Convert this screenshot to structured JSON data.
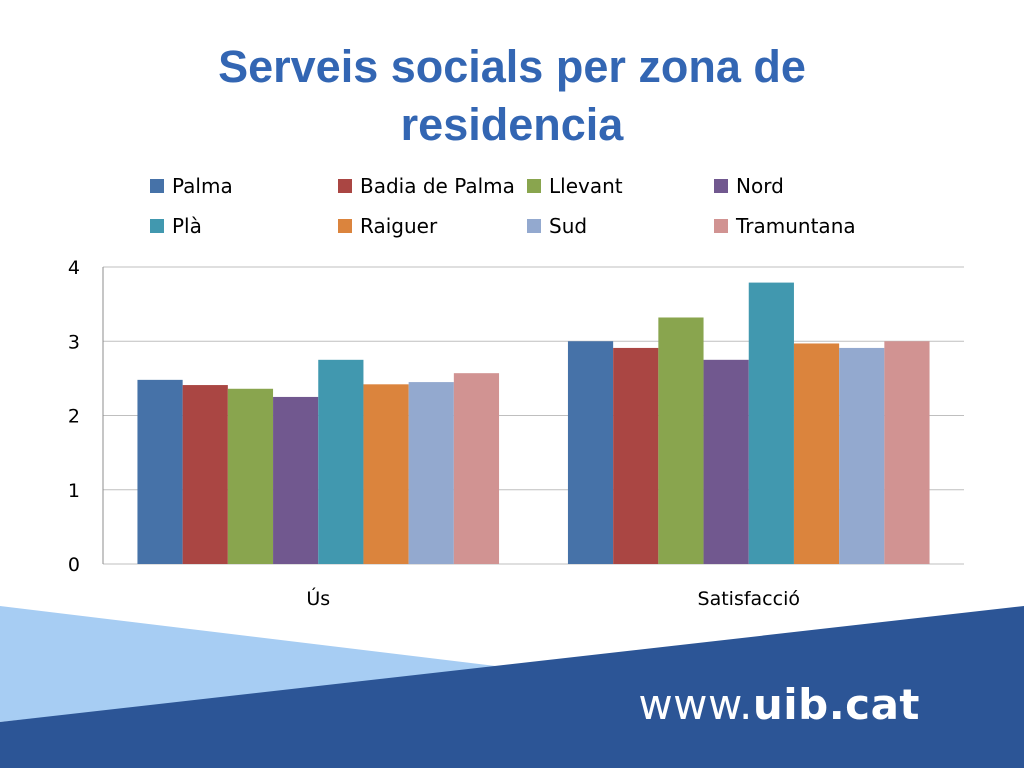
{
  "slide": {
    "title_line1": "Serveis socials per zona de",
    "title_line2": "residencia",
    "footer_prefix": "www.",
    "footer_domain": "uib.cat"
  },
  "colors": {
    "title": "#3366b3",
    "footer_dark": "#2c5596",
    "footer_light": "#a7cdf3",
    "grid": "#bfbfbf"
  },
  "chart_data": {
    "type": "bar",
    "title": "Serveis socials per zona de residencia",
    "categories": [
      "Ús",
      "Satisfacció"
    ],
    "series": [
      {
        "name": "Palma",
        "color": "#4672a8",
        "values": [
          2.48,
          3.0
        ]
      },
      {
        "name": "Badia de Palma",
        "color": "#aa4643",
        "values": [
          2.41,
          2.91
        ]
      },
      {
        "name": "Llevant",
        "color": "#89a54e",
        "values": [
          2.36,
          3.32
        ]
      },
      {
        "name": "Nord",
        "color": "#71588f",
        "values": [
          2.25,
          2.75
        ]
      },
      {
        "name": "Plà",
        "color": "#4198af",
        "values": [
          2.75,
          3.79
        ]
      },
      {
        "name": "Raiguer",
        "color": "#db843d",
        "values": [
          2.42,
          2.97
        ]
      },
      {
        "name": "Sud",
        "color": "#93a9cf",
        "values": [
          2.45,
          2.91
        ]
      },
      {
        "name": "Tramuntana",
        "color": "#d19392",
        "values": [
          2.57,
          3.0
        ]
      }
    ],
    "yticks": [
      "0",
      "1",
      "2",
      "3",
      "4"
    ],
    "ylim": [
      0,
      4
    ],
    "grid": true,
    "legend": "top"
  }
}
